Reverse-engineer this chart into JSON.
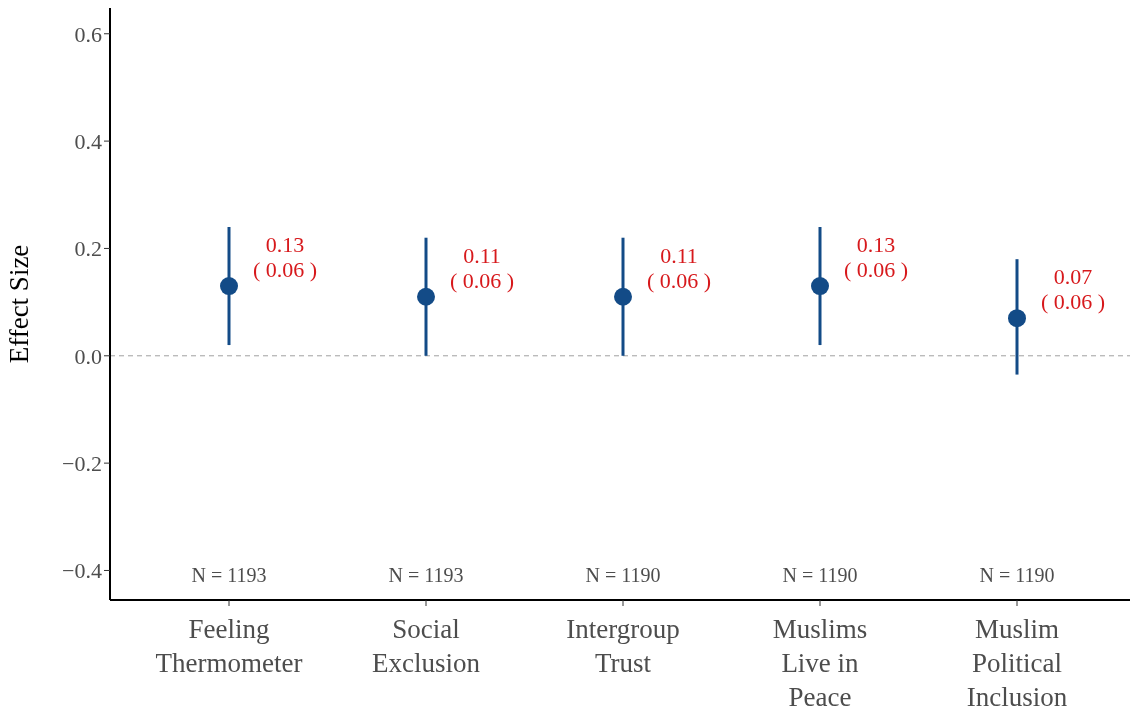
{
  "chart_data": {
    "type": "scatter",
    "ylabel": "Effect Size",
    "categories": [
      "Feeling Thermometer",
      "Social Exclusion",
      "Intergroup Trust",
      "Muslims Live in Peace",
      "Muslim Political Inclusion"
    ],
    "values": [
      0.13,
      0.11,
      0.11,
      0.13,
      0.07
    ],
    "errors": [
      [
        0.02,
        0.24
      ],
      [
        0.0,
        0.22
      ],
      [
        0.0,
        0.22
      ],
      [
        0.02,
        0.24
      ],
      [
        -0.035,
        0.18
      ]
    ],
    "value_labels": [
      "0.13\n( 0.06 )",
      "0.11\n( 0.06 )",
      "0.11\n( 0.06 )",
      "0.13\n( 0.06 )",
      "0.07\n( 0.06 )"
    ],
    "color": "#134b87",
    "marker": "circle",
    "grid": false,
    "legend": false,
    "ylim": [
      -0.455,
      0.648
    ],
    "yticks": [
      {
        "value": -0.4,
        "label": "−0.4"
      },
      {
        "value": -0.2,
        "label": "−0.2"
      },
      {
        "value": 0,
        "label": "0.0"
      },
      {
        "value": 0.2,
        "label": "0.2"
      },
      {
        "value": 0.4,
        "label": "0.4"
      },
      {
        "value": 0.6,
        "label": "0.6"
      }
    ],
    "ref_lines": [
      {
        "axis": "y",
        "value": 0,
        "color": "#a0a0a0",
        "line_style": "dashed"
      }
    ],
    "annotations": [
      "N = 1193",
      "N = 1193",
      "N = 1190",
      "N = 1190",
      "N = 1190"
    ]
  }
}
